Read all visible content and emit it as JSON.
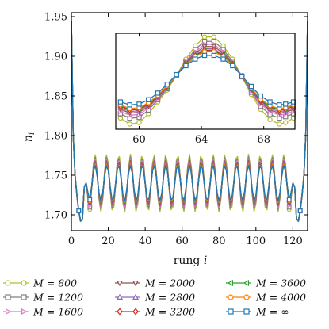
{
  "chart_data": {
    "type": "line",
    "xlabel": "rung i",
    "ylabel": "n_i",
    "xlim": [
      0,
      128
    ],
    "ylim": [
      1.68,
      1.955
    ],
    "xticks": [
      0,
      20,
      40,
      60,
      80,
      100,
      120
    ],
    "yticks": [
      1.7,
      1.75,
      1.8,
      1.85,
      1.9,
      1.95
    ],
    "ytick_labels": [
      "1.70",
      "1.75",
      "1.80",
      "1.85",
      "1.90",
      "1.95"
    ],
    "grid": false,
    "legend_location": "below",
    "edge_values": {
      "i0": 1.945,
      "i1": 1.8,
      "i2": 1.75,
      "i3": 1.725,
      "i4": 1.705,
      "i5": 1.692,
      "i6": 1.695,
      "i7": 1.735
    },
    "oscillation": {
      "period": 6.4,
      "peak_i": 64,
      "min_base": 1.715,
      "max_base": 1.765
    },
    "series": [
      {
        "name": "M = 800",
        "color": "#b5bd2c",
        "marker": "circle",
        "amplitude": 1.45,
        "inset": [
          1.82,
          1.812,
          1.814,
          1.826,
          1.842,
          1.858,
          1.878,
          1.9,
          1.918,
          1.93,
          1.93,
          1.918,
          1.9,
          1.876,
          1.852,
          1.832,
          1.818,
          1.812,
          1.814,
          1.82
        ]
      },
      {
        "name": "M = 1200",
        "color": "#7f7f7f",
        "marker": "square",
        "amplitude": 1.32,
        "inset": [
          1.826,
          1.82,
          1.821,
          1.831,
          1.845,
          1.86,
          1.878,
          1.897,
          1.913,
          1.924,
          1.924,
          1.913,
          1.897,
          1.876,
          1.855,
          1.836,
          1.825,
          1.82,
          1.822,
          1.826
        ]
      },
      {
        "name": "M = 1600",
        "color": "#e377c2",
        "marker": "triangle-right",
        "amplitude": 1.22,
        "inset": [
          1.829,
          1.824,
          1.825,
          1.834,
          1.847,
          1.861,
          1.878,
          1.896,
          1.91,
          1.92,
          1.92,
          1.91,
          1.896,
          1.877,
          1.857,
          1.839,
          1.829,
          1.824,
          1.826,
          1.829
        ]
      },
      {
        "name": "M = 2000",
        "color": "#8c564b",
        "marker": "triangle-down",
        "amplitude": 1.14,
        "inset": [
          1.832,
          1.827,
          1.828,
          1.836,
          1.848,
          1.862,
          1.878,
          1.895,
          1.908,
          1.917,
          1.917,
          1.908,
          1.895,
          1.877,
          1.858,
          1.841,
          1.831,
          1.827,
          1.828,
          1.832
        ]
      },
      {
        "name": "M = 2800",
        "color": "#9467bd",
        "marker": "triangle-up",
        "amplitude": 1.08,
        "inset": [
          1.834,
          1.829,
          1.83,
          1.838,
          1.849,
          1.862,
          1.878,
          1.894,
          1.906,
          1.914,
          1.914,
          1.906,
          1.894,
          1.877,
          1.859,
          1.843,
          1.833,
          1.829,
          1.83,
          1.834
        ]
      },
      {
        "name": "M = 3200",
        "color": "#d62728",
        "marker": "diamond",
        "amplitude": 1.03,
        "inset": [
          1.836,
          1.831,
          1.832,
          1.839,
          1.85,
          1.863,
          1.878,
          1.893,
          1.905,
          1.912,
          1.912,
          1.905,
          1.893,
          1.877,
          1.86,
          1.844,
          1.835,
          1.831,
          1.832,
          1.836
        ]
      },
      {
        "name": "M = 3600",
        "color": "#2ca02c",
        "marker": "triangle-left",
        "amplitude": 1.0,
        "inset": [
          1.837,
          1.832,
          1.833,
          1.84,
          1.851,
          1.863,
          1.878,
          1.893,
          1.904,
          1.911,
          1.911,
          1.904,
          1.893,
          1.877,
          1.86,
          1.845,
          1.836,
          1.832,
          1.833,
          1.837
        ]
      },
      {
        "name": "M = 4000",
        "color": "#ff7f0e",
        "marker": "circle",
        "amplitude": 0.97,
        "inset": [
          1.838,
          1.833,
          1.834,
          1.841,
          1.851,
          1.864,
          1.878,
          1.892,
          1.903,
          1.91,
          1.91,
          1.903,
          1.892,
          1.877,
          1.861,
          1.846,
          1.837,
          1.833,
          1.834,
          1.838
        ]
      },
      {
        "name": "M = ∞",
        "color": "#1f77b4",
        "marker": "square",
        "amplitude": 0.9,
        "inset": [
          1.842,
          1.838,
          1.839,
          1.845,
          1.854,
          1.866,
          1.879,
          1.891,
          1.9,
          1.905,
          1.905,
          1.9,
          1.891,
          1.877,
          1.863,
          1.85,
          1.842,
          1.838,
          1.839,
          1.842
        ]
      }
    ],
    "inset": {
      "xlim": [
        58.5,
        70.0
      ],
      "ylim": [
        1.805,
        1.935
      ],
      "xticks": [
        60,
        64,
        68
      ],
      "x": [
        58.8,
        59.4,
        60,
        60.6,
        61.2,
        61.8,
        62.4,
        63.0,
        63.6,
        64.2,
        64.8,
        65.4,
        66.0,
        66.6,
        67.2,
        67.8,
        68.4,
        69.0,
        69.4,
        69.9
      ]
    }
  }
}
